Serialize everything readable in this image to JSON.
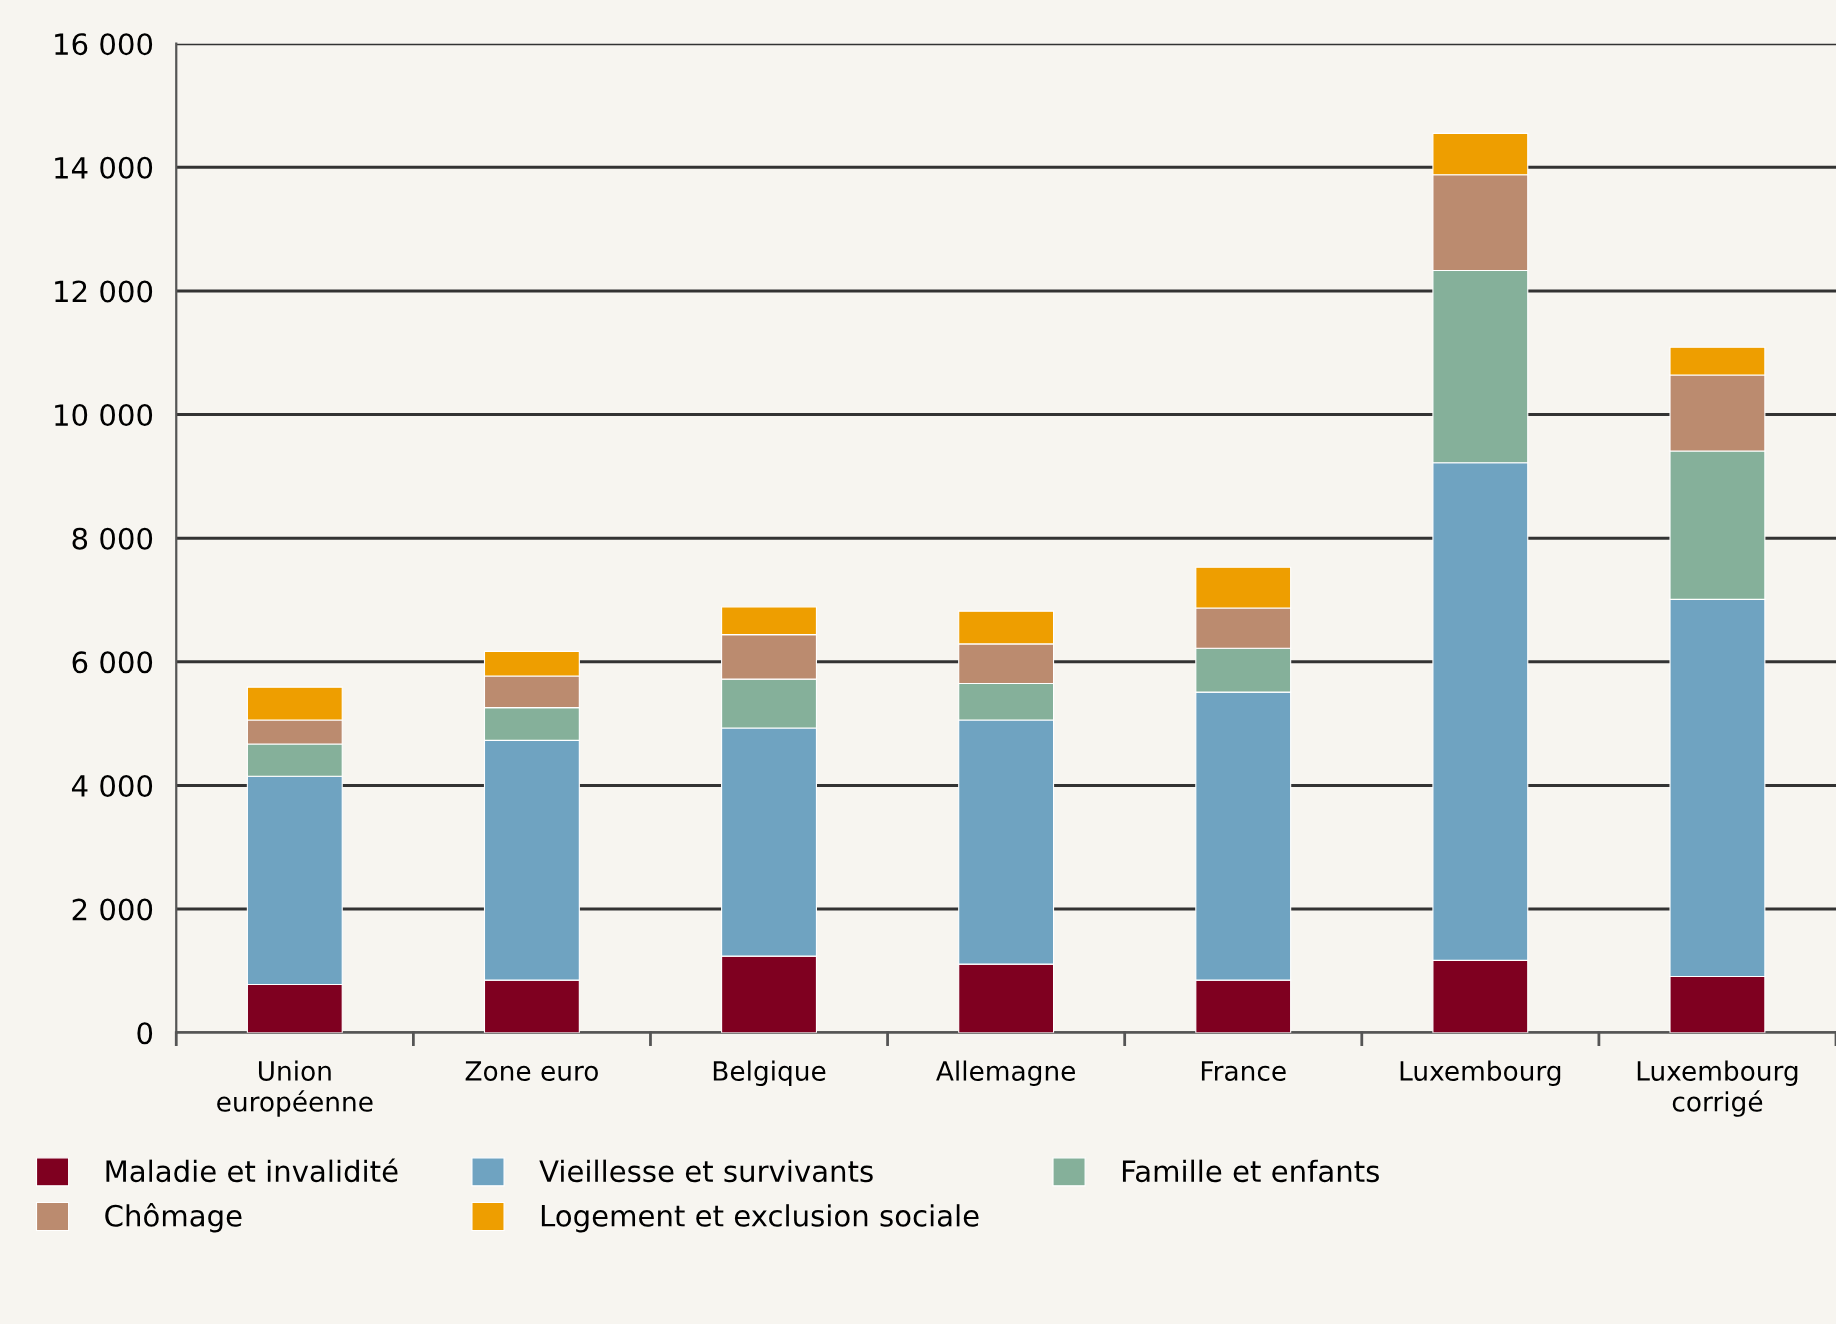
{
  "chart_data": {
    "type": "bar",
    "stacked": true,
    "categories": [
      "Union\neuropéenne",
      "Zone euro",
      "Belgique",
      "Allemagne",
      "France",
      "Luxembourg",
      "Luxembourg\ncorrigé"
    ],
    "series": [
      {
        "name": "Maladie et invalidité",
        "color": "#7f0020",
        "values": [
          780,
          850,
          1240,
          1110,
          850,
          1170,
          910
        ]
      },
      {
        "name": "Vieillesse et survivants",
        "color": "#6fa3c1",
        "values": [
          3370,
          3880,
          3690,
          3950,
          4660,
          8050,
          6100
        ]
      },
      {
        "name": "Famille et enfants",
        "color": "#85b09a",
        "values": [
          520,
          530,
          790,
          590,
          710,
          3110,
          2400
        ]
      },
      {
        "name": "Chômage",
        "color": "#bb8b6f",
        "values": [
          390,
          510,
          720,
          640,
          650,
          1550,
          1230
        ]
      },
      {
        "name": "Logement et exclusion sociale",
        "color": "#ee9e00",
        "values": [
          530,
          400,
          450,
          530,
          660,
          670,
          450
        ]
      }
    ],
    "ylim": [
      0,
      16000
    ],
    "yticks": [
      0,
      {
        "value": 2000,
        "label": "2 000"
      },
      {
        "value": 4000,
        "label": "4 000"
      },
      {
        "value": 6000,
        "label": "6 000"
      },
      {
        "value": 8000,
        "label": "8 000"
      },
      {
        "value": 10000,
        "label": "10 000"
      },
      {
        "value": 12000,
        "label": "12 000"
      },
      {
        "value": 14000,
        "label": "14 000"
      },
      {
        "value": 16000,
        "label": "16 000"
      }
    ],
    "grid": "y",
    "legend": "bottom"
  }
}
